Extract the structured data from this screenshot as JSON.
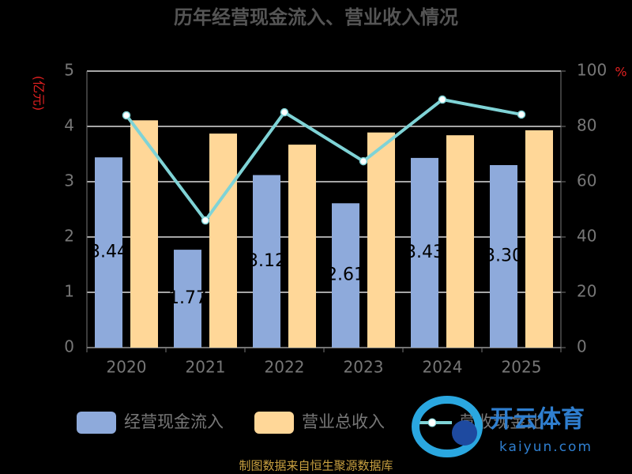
{
  "chart_data": {
    "type": "bar",
    "title": "历年经营现金流入、营业收入情况",
    "y_label": "(亿元)",
    "y2_label": "%",
    "categories": [
      "2020",
      "2021",
      "2022",
      "2023",
      "2024",
      "2025"
    ],
    "series": [
      {
        "name": "经营现金流入",
        "color": "#8eaadb",
        "values": [
          3.44,
          1.77,
          3.12,
          2.61,
          3.43,
          3.3
        ],
        "value_labels": [
          "3.44",
          "1.77",
          "3.12",
          "2.61",
          "3.43",
          "3.30"
        ]
      },
      {
        "name": "营业总收入",
        "color": "#ffd798",
        "values": [
          4.11,
          3.87,
          3.67,
          3.89,
          3.84,
          3.93
        ]
      },
      {
        "name": "营收现金比",
        "color": "#7fd3d6",
        "type": "line",
        "axis": "y2",
        "values": [
          84.0,
          46.0,
          85.1,
          67.4,
          89.7,
          84.3
        ]
      }
    ],
    "ylim": [
      0,
      5
    ],
    "yticks": [
      0,
      1,
      2,
      3,
      4,
      5
    ],
    "y2lim": [
      0,
      100
    ],
    "y2ticks": [
      0,
      20,
      40,
      60,
      80,
      100
    ],
    "grid": true,
    "source": "制图数据来自恒生聚源数据库",
    "watermark": {
      "brand": "开云体育",
      "site": "kaiyun.com"
    }
  }
}
